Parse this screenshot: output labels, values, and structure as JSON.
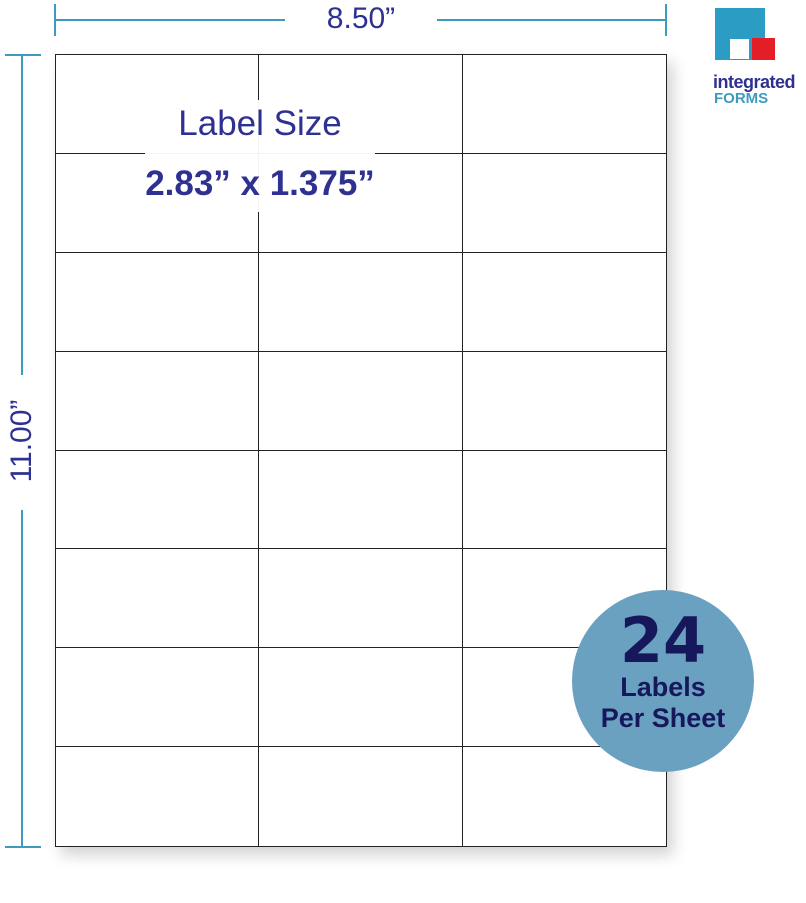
{
  "dimensions": {
    "width": "8.50”",
    "height": "11.00”"
  },
  "label_size": {
    "title": "Label Size",
    "value": "2.83” x 1.375”"
  },
  "grid": {
    "columns": 3,
    "rows": 8
  },
  "badge": {
    "count": "24",
    "line1": "Labels",
    "line2": "Per Sheet"
  },
  "logo": {
    "line1": "integrated",
    "line2": "FORMS"
  },
  "colors": {
    "dimension_line": "#3d9bc0",
    "text": "#2e3191",
    "badge": "#6aa0c0",
    "badge_text": "#17175c",
    "logo_blue": "#2b9cc4",
    "logo_red": "#e41e26"
  }
}
